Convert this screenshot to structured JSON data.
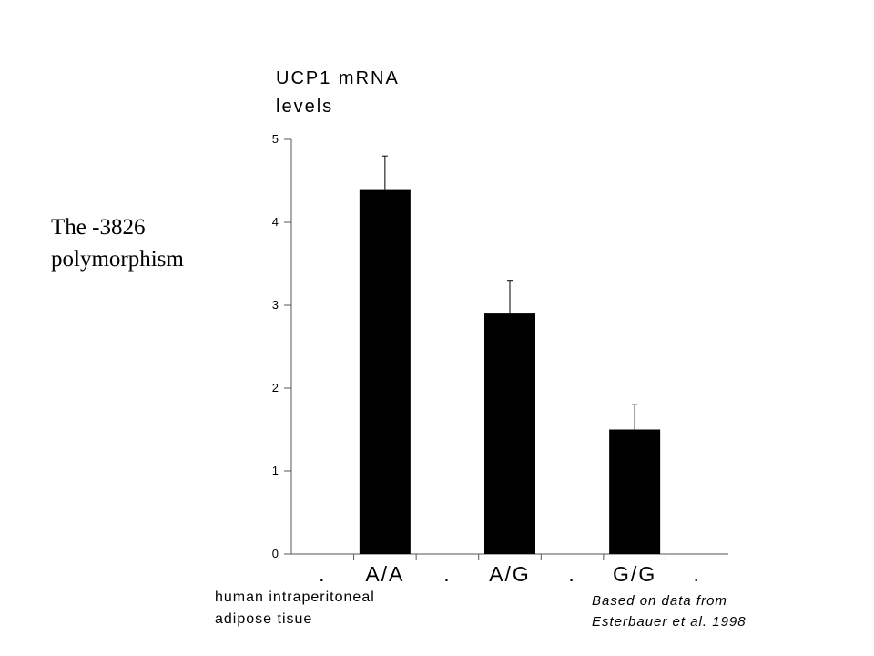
{
  "slide": {
    "title_lines": [
      "The -3826",
      "polymorphism"
    ]
  },
  "chart_data": {
    "type": "bar",
    "categories": [
      "A/A",
      "A/G",
      "G/G"
    ],
    "axis_separator_label": ".",
    "values": [
      4.4,
      2.9,
      1.5
    ],
    "error_upper": [
      4.8,
      3.3,
      1.8
    ],
    "ylabel_lines": [
      "UCP1  mRNA",
      "levels"
    ],
    "xlabel_lines": [
      "human  intraperitoneal",
      "adipose   tisue"
    ],
    "source_lines": [
      "Based on data from",
      "Esterbauer et al. 1998"
    ],
    "yticks": [
      0,
      1,
      2,
      3,
      4,
      5
    ],
    "ylim": [
      0,
      5
    ],
    "grid": false,
    "bar_color": "#000000"
  }
}
